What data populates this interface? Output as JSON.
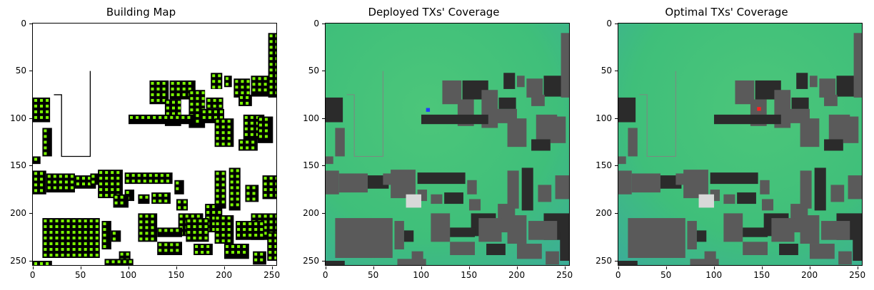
{
  "panels": [
    {
      "title": "Building Map",
      "kind": "map"
    },
    {
      "title": "Deployed TXs' Coverage",
      "kind": "coverage",
      "tx": {
        "x": 107,
        "y": 91,
        "color": "#1f3cff"
      }
    },
    {
      "title": "Optimal TXs' Coverage",
      "kind": "coverage",
      "tx": {
        "x": 147,
        "y": 90,
        "color": "#ff2020"
      }
    }
  ],
  "x_ticks": [
    "0",
    "50",
    "100",
    "150",
    "200",
    "250"
  ],
  "y_ticks": [
    "0",
    "50",
    "100",
    "150",
    "200",
    "250"
  ],
  "grid_extent": [
    0,
    256
  ],
  "colors": {
    "map_background": "#ffffff",
    "building": "#000000",
    "map_marker": "#7cfc00",
    "coverage_base": "#3fbf7a",
    "coverage_edge": "#3ba8a0",
    "building_gray": "#5a5a5a",
    "building_dark": "#2b2b2b"
  },
  "buildings": [
    [
      122,
      60,
      20,
      25
    ],
    [
      143,
      60,
      27,
      20
    ],
    [
      138,
      80,
      17,
      28
    ],
    [
      163,
      70,
      17,
      40
    ],
    [
      181,
      78,
      18,
      12
    ],
    [
      176,
      90,
      24,
      15
    ],
    [
      210,
      58,
      17,
      20
    ],
    [
      228,
      55,
      20,
      22
    ],
    [
      215,
      75,
      14,
      12
    ],
    [
      220,
      96,
      22,
      26
    ],
    [
      215,
      122,
      20,
      12
    ],
    [
      235,
      98,
      16,
      28
    ],
    [
      246,
      10,
      12,
      68
    ],
    [
      186,
      52,
      12,
      17
    ],
    [
      200,
      55,
      8,
      12
    ],
    [
      190,
      100,
      20,
      30
    ],
    [
      0,
      78,
      18,
      26
    ],
    [
      10,
      110,
      10,
      30
    ],
    [
      0,
      140,
      8,
      8
    ],
    [
      100,
      96,
      70,
      10
    ],
    [
      0,
      155,
      14,
      25
    ],
    [
      14,
      158,
      30,
      20
    ],
    [
      44,
      160,
      22,
      14
    ],
    [
      60,
      158,
      10,
      12
    ],
    [
      68,
      154,
      26,
      30
    ],
    [
      96,
      157,
      50,
      12
    ],
    [
      96,
      175,
      10,
      12
    ],
    [
      110,
      180,
      12,
      10
    ],
    [
      124,
      178,
      20,
      12
    ],
    [
      148,
      165,
      10,
      15
    ],
    [
      150,
      185,
      12,
      12
    ],
    [
      152,
      200,
      26,
      24
    ],
    [
      180,
      190,
      18,
      30
    ],
    [
      190,
      155,
      12,
      40
    ],
    [
      205,
      152,
      12,
      45
    ],
    [
      222,
      170,
      14,
      18
    ],
    [
      240,
      160,
      18,
      25
    ],
    [
      228,
      200,
      30,
      28
    ],
    [
      10,
      205,
      60,
      42
    ],
    [
      72,
      208,
      10,
      30
    ],
    [
      82,
      218,
      10,
      12
    ],
    [
      90,
      240,
      12,
      12
    ],
    [
      110,
      200,
      20,
      30
    ],
    [
      130,
      215,
      26,
      10
    ],
    [
      130,
      230,
      26,
      14
    ],
    [
      160,
      205,
      24,
      25
    ],
    [
      168,
      232,
      20,
      12
    ],
    [
      190,
      202,
      20,
      30
    ],
    [
      212,
      208,
      30,
      20
    ],
    [
      245,
      220,
      12,
      30
    ],
    [
      200,
      232,
      26,
      16
    ],
    [
      230,
      240,
      14,
      14
    ],
    [
      0,
      250,
      20,
      6
    ],
    [
      75,
      248,
      30,
      8
    ]
  ],
  "light_buildings": [
    [
      84,
      180,
      16,
      14
    ]
  ]
}
